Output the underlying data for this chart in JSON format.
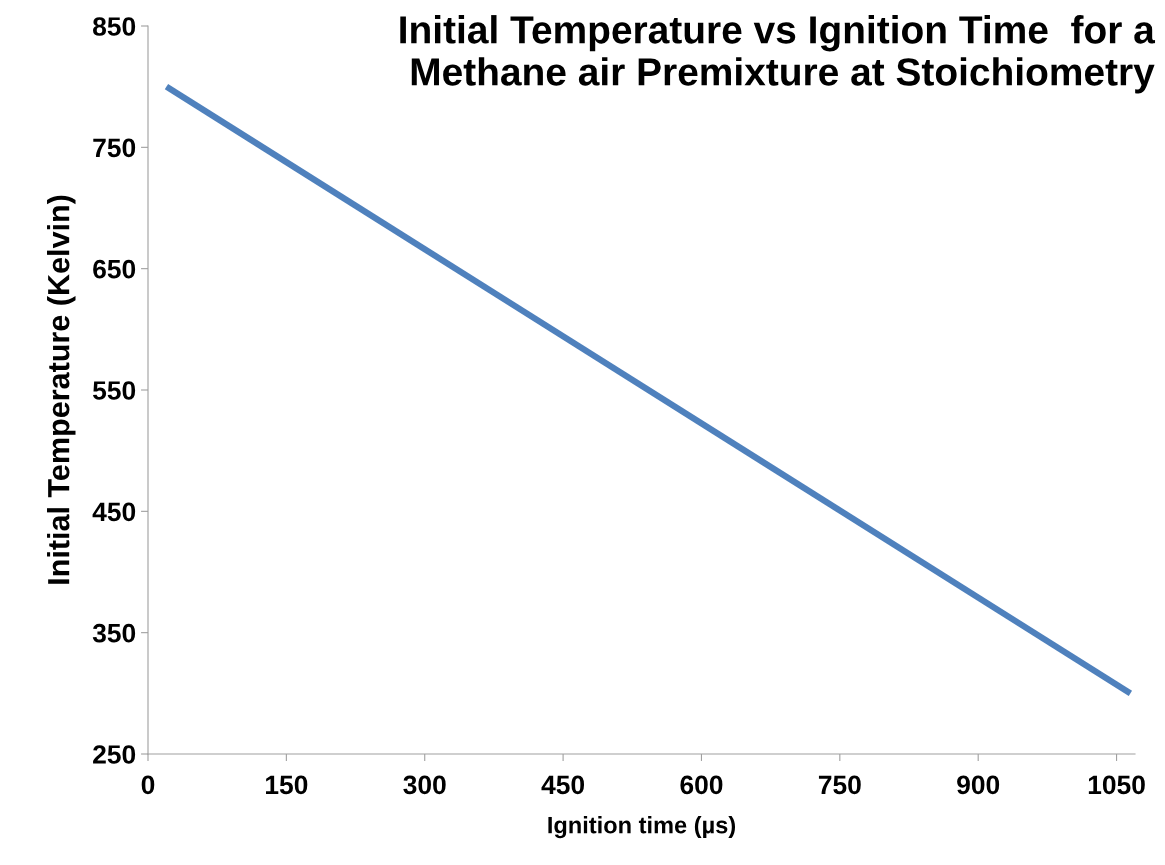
{
  "chart_data": {
    "type": "line",
    "title": "Initial Temperature vs Ignition Time  for a\nMethane air Premixture at Stoichiometry",
    "xlabel": "Ignition time (µs)",
    "ylabel": "Initial Temperature (Kelvin)",
    "x": [
      20,
      1065
    ],
    "series": [
      {
        "color": "#4f81bd",
        "values": [
          800,
          300
        ]
      }
    ],
    "xlim": [
      0,
      1070
    ],
    "xticks": [
      0,
      150,
      300,
      450,
      600,
      750,
      900,
      1050
    ],
    "ylim": [
      250,
      850
    ],
    "yticks": [
      250,
      350,
      450,
      550,
      650,
      750,
      850
    ],
    "grid": false,
    "legend": false,
    "marker": "none",
    "line_style": "solid"
  }
}
